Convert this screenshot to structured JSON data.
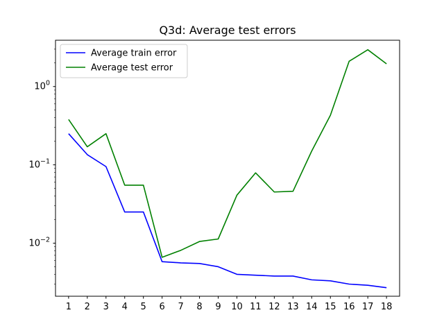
{
  "chart_data": {
    "type": "line",
    "title": "Q3d: Average test errors",
    "xlabel": "",
    "ylabel": "",
    "x": [
      1,
      2,
      3,
      4,
      5,
      6,
      7,
      8,
      9,
      10,
      11,
      12,
      13,
      14,
      15,
      16,
      17,
      18
    ],
    "x_tick_labels": [
      "1",
      "2",
      "3",
      "4",
      "5",
      "6",
      "7",
      "8",
      "9",
      "10",
      "11",
      "12",
      "13",
      "14",
      "15",
      "16",
      "17",
      "18"
    ],
    "xlim": [
      0.3,
      18.7
    ],
    "ylog": true,
    "ylim": [
      0.0021,
      3.9
    ],
    "y_ticks": [
      {
        "value": 0.01,
        "base": "10",
        "exp": "−2"
      },
      {
        "value": 0.1,
        "base": "10",
        "exp": "−1"
      },
      {
        "value": 1,
        "base": "10",
        "exp": "0"
      }
    ],
    "grid": false,
    "legend_position": "upper-left",
    "series": [
      {
        "name": "Average train error",
        "color": "#0000ff",
        "values": [
          0.25,
          0.135,
          0.095,
          0.025,
          0.025,
          0.0058,
          0.0056,
          0.0055,
          0.005,
          0.004,
          0.0039,
          0.0038,
          0.0038,
          0.0034,
          0.0033,
          0.003,
          0.0029,
          0.0027
        ]
      },
      {
        "name": "Average test error",
        "color": "#008000",
        "values": [
          0.38,
          0.17,
          0.25,
          0.055,
          0.055,
          0.0066,
          0.0081,
          0.0105,
          0.0113,
          0.041,
          0.079,
          0.045,
          0.046,
          0.15,
          0.43,
          2.1,
          2.95,
          1.95
        ]
      }
    ]
  }
}
